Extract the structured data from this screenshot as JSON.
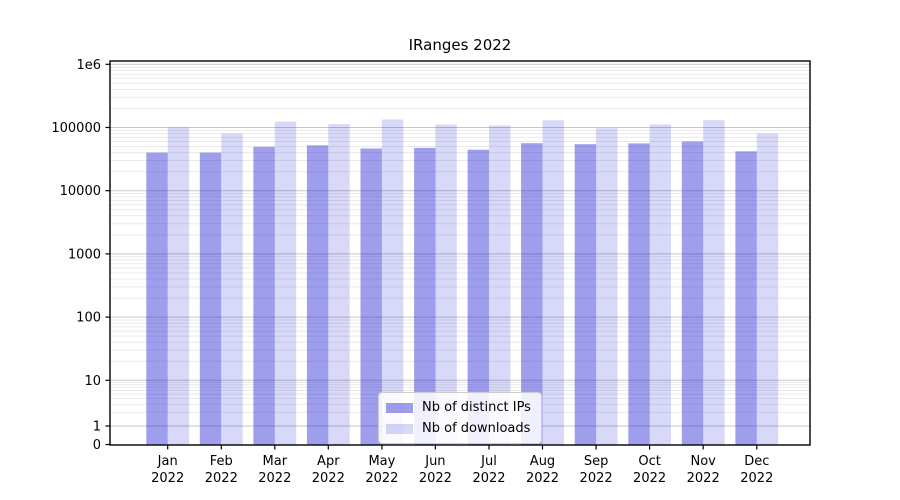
{
  "title": "IRanges 2022",
  "legend": {
    "position": "lower center",
    "items": [
      {
        "label": "Nb of distinct IPs",
        "color": "#a0a0f0"
      },
      {
        "label": "Nb of downloads",
        "color": "#d8d8f8"
      }
    ]
  },
  "chart_data": {
    "type": "bar",
    "title": "IRanges 2022",
    "xlabel": "",
    "ylabel": "",
    "yscale": "symlog",
    "ylim": [
      0,
      1000000
    ],
    "grid": true,
    "legend_position": "lower center",
    "categories": [
      "Jan 2022",
      "Feb 2022",
      "Mar 2022",
      "Apr 2022",
      "May 2022",
      "Jun 2022",
      "Jul 2022",
      "Aug 2022",
      "Sep 2022",
      "Oct 2022",
      "Nov 2022",
      "Dec 2022"
    ],
    "ytick_values": [
      1000000,
      100000,
      10000,
      1000,
      100,
      10,
      1,
      0
    ],
    "ytick_labels": [
      "1e6",
      "100000",
      "10000",
      "1000",
      "100",
      "10",
      "1",
      "0"
    ],
    "series": [
      {
        "name": "Nb of distinct IPs",
        "base_color": "#2828d7",
        "alpha": 0.45,
        "perceived_color": "#a0a0f0",
        "values": [
          40000,
          40000,
          49500,
          52000,
          46500,
          47500,
          44500,
          56500,
          54500,
          56000,
          60000,
          42000
        ]
      },
      {
        "name": "Nb of downloads",
        "base_color": "#2828d7",
        "alpha": 0.18,
        "perceived_color": "#d8d8f8",
        "values": [
          100000,
          80000,
          124000,
          113000,
          134000,
          111000,
          108000,
          130000,
          97000,
          112000,
          131000,
          80000
        ]
      }
    ]
  }
}
